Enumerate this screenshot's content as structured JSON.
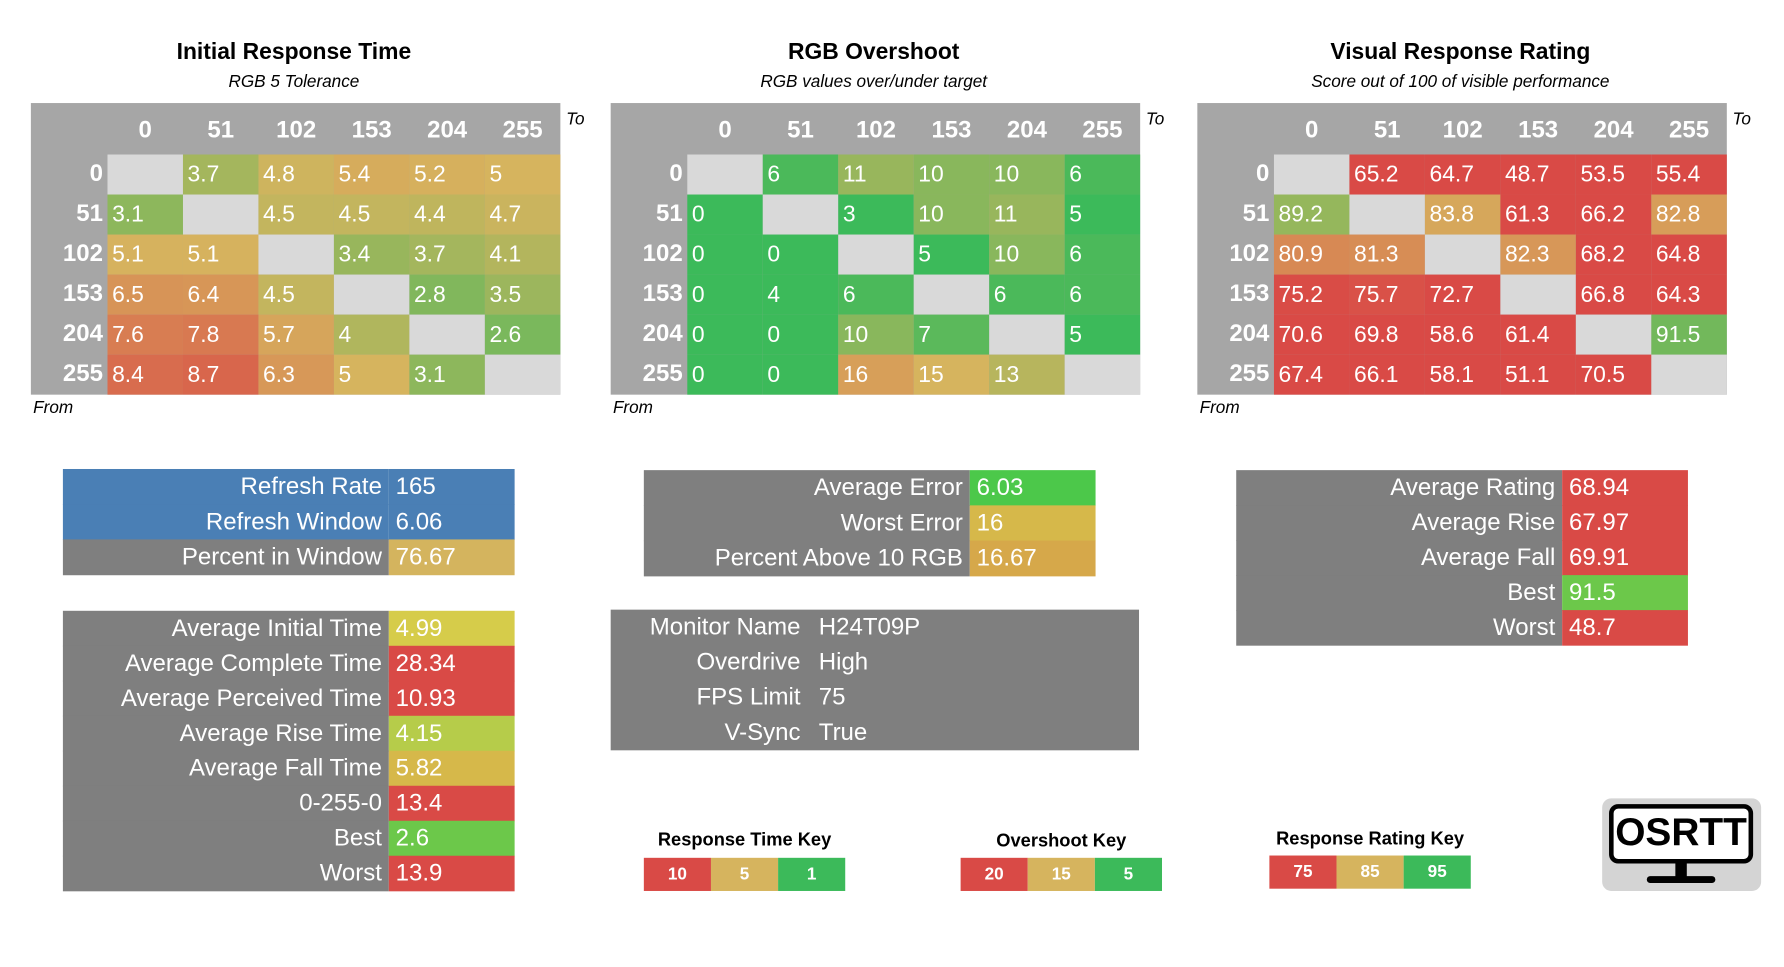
{
  "matrices": [
    {
      "title": "Initial Response Time",
      "subtitle": "RGB 5 Tolerance",
      "to": "To",
      "from": "From",
      "key": 0,
      "columns": [
        0,
        51,
        102,
        153,
        204,
        255
      ],
      "rows": [
        0,
        51,
        102,
        153,
        204,
        255
      ],
      "cells": [
        [
          null,
          3.7,
          4.8,
          5.4,
          5.2,
          5
        ],
        [
          3.1,
          null,
          4.5,
          4.5,
          4.4,
          4.7
        ],
        [
          5.1,
          5.1,
          null,
          3.4,
          3.7,
          4.1
        ],
        [
          6.5,
          6.4,
          4.5,
          null,
          2.8,
          3.5
        ],
        [
          7.6,
          7.8,
          5.7,
          4,
          null,
          2.6
        ],
        [
          8.4,
          8.7,
          6.3,
          5,
          3.1,
          null
        ]
      ]
    },
    {
      "title": "RGB Overshoot",
      "subtitle": "RGB values over/under target",
      "to": "To",
      "from": "From",
      "key": 1,
      "columns": [
        0,
        51,
        102,
        153,
        204,
        255
      ],
      "rows": [
        0,
        51,
        102,
        153,
        204,
        255
      ],
      "cells": [
        [
          null,
          6,
          11,
          10,
          10,
          6
        ],
        [
          0,
          null,
          3,
          10,
          11,
          5
        ],
        [
          0,
          0,
          null,
          5,
          10,
          6
        ],
        [
          0,
          4,
          6,
          null,
          6,
          6
        ],
        [
          0,
          0,
          10,
          7,
          null,
          5
        ],
        [
          0,
          0,
          16,
          15,
          13,
          null
        ]
      ]
    },
    {
      "title": "Visual Response Rating",
      "subtitle": "Score out of 100 of visible performance",
      "to": "To",
      "from": "From",
      "key": 2,
      "columns": [
        0,
        51,
        102,
        153,
        204,
        255
      ],
      "rows": [
        0,
        51,
        102,
        153,
        204,
        255
      ],
      "cells": [
        [
          null,
          65.2,
          64.7,
          48.7,
          53.5,
          55.4
        ],
        [
          89.2,
          null,
          83.8,
          61.3,
          66.2,
          82.8
        ],
        [
          80.9,
          81.3,
          null,
          82.3,
          68.2,
          64.8
        ],
        [
          75.2,
          75.7,
          72.7,
          null,
          66.8,
          64.3
        ],
        [
          70.6,
          69.8,
          58.6,
          61.4,
          null,
          91.5
        ],
        [
          67.4,
          66.1,
          58.1,
          51.1,
          70.5,
          null
        ]
      ]
    }
  ],
  "stats": [
    {
      "label_color": "#7f7f7f",
      "rows": [
        {
          "label": "Refresh Rate",
          "value": 165,
          "color": "#4a7fb5",
          "label_color": "#4a7fb5"
        },
        {
          "label": "Refresh Window",
          "value": 6.06,
          "color": "#4a7fb5",
          "label_color": "#4a7fb5"
        },
        {
          "label": "Percent in Window",
          "value": 76.67,
          "color": "#d4b45e"
        }
      ]
    },
    {
      "label_color": "#7f7f7f",
      "rows": [
        {
          "label": "Average Initial Time",
          "value": 4.99,
          "color": "#d6cc4a"
        },
        {
          "label": "Average Complete Time",
          "value": 28.34,
          "color": "#d94a46"
        },
        {
          "label": "Average Perceived Time",
          "value": 10.93,
          "color": "#d94a46"
        },
        {
          "label": "Average Rise Time",
          "value": 4.15,
          "color": "#b6cc4a"
        },
        {
          "label": "Average Fall Time",
          "value": 5.82,
          "color": "#d6b84a"
        },
        {
          "label": "0-255-0",
          "value": 13.4,
          "color": "#d94a46"
        },
        {
          "label": "Best",
          "value": 2.6,
          "color": "#6cc84a"
        },
        {
          "label": "Worst",
          "value": 13.9,
          "color": "#d94a46"
        }
      ]
    },
    {
      "label_color": "#7f7f7f",
      "rows": [
        {
          "label": "Average Error",
          "value": 6.03,
          "color": "#4cc84a"
        },
        {
          "label": "Worst Error",
          "value": 16,
          "color": "#d6b84a"
        },
        {
          "label": "Percent Above 10 RGB",
          "value": 16.67,
          "color": "#d6a84a"
        }
      ]
    },
    {
      "label_color": "#7f7f7f",
      "rows": [
        {
          "label": "Average Rating",
          "value": 68.94,
          "color": "#d94a46"
        },
        {
          "label": "Average Rise",
          "value": 67.97,
          "color": "#d94a46"
        },
        {
          "label": "Average Fall",
          "value": 69.91,
          "color": "#d94a46"
        },
        {
          "label": "Best",
          "value": 91.5,
          "color": "#6cc84a"
        },
        {
          "label": "Worst",
          "value": 48.7,
          "color": "#d94a46"
        }
      ]
    }
  ],
  "monitor": {
    "rows": [
      {
        "label": "Monitor Name",
        "value": "H24T09P"
      },
      {
        "label": "Overdrive",
        "value": "High"
      },
      {
        "label": "FPS Limit",
        "value": 75
      },
      {
        "label": "V-Sync",
        "value": "True"
      }
    ]
  },
  "keys": [
    {
      "title": "Response Time Key",
      "items": [
        {
          "value": 10,
          "color": "#d94a46"
        },
        {
          "value": 5,
          "color": "#d6b45e"
        },
        {
          "value": 1,
          "color": "#3cba5a"
        }
      ]
    },
    {
      "title": "Overshoot Key",
      "items": [
        {
          "value": 20,
          "color": "#d94a46"
        },
        {
          "value": 15,
          "color": "#d6b45e"
        },
        {
          "value": 5,
          "color": "#3cba5a"
        }
      ]
    },
    {
      "title": "Response Rating Key",
      "items": [
        {
          "value": 75,
          "color": "#d94a46"
        },
        {
          "value": 85,
          "color": "#d6b45e"
        },
        {
          "value": 95,
          "color": "#3cba5a"
        }
      ]
    }
  ],
  "logo": "OSRTT"
}
